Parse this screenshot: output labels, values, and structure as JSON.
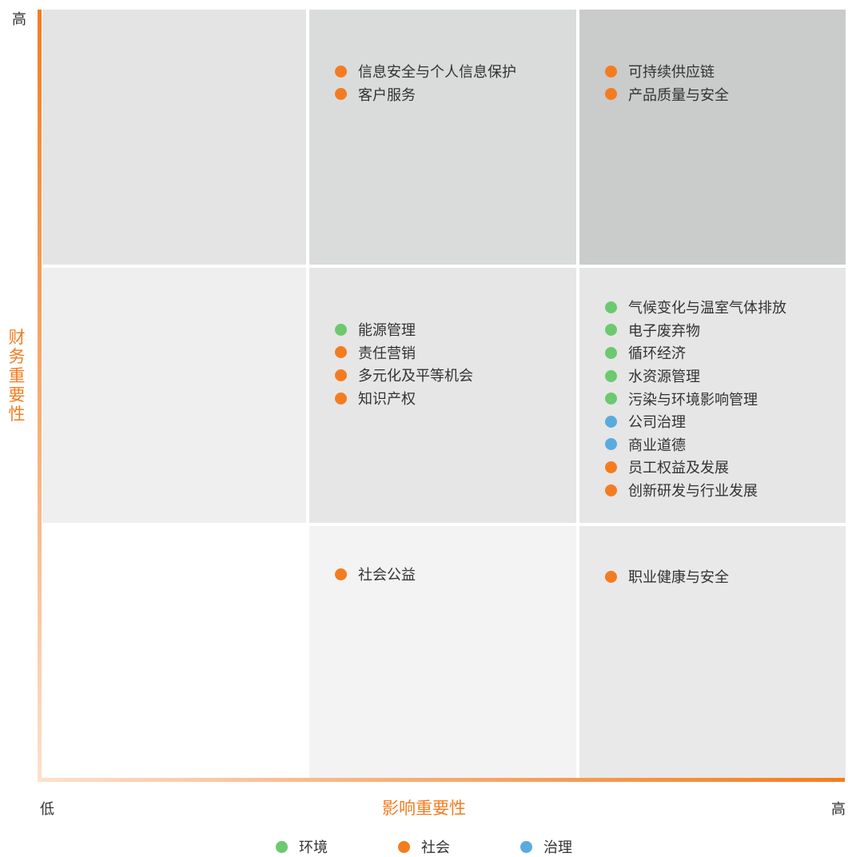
{
  "colors": {
    "environment": "#6cc970",
    "social": "#f47c20",
    "governance": "#5aabdd"
  },
  "axes": {
    "y_title": "财务重要性",
    "y_high": "高",
    "x_title": "影响重要性",
    "x_low": "低",
    "x_high": "高"
  },
  "legend": [
    {
      "label": "环境",
      "category": "environment"
    },
    {
      "label": "社会",
      "category": "social"
    },
    {
      "label": "治理",
      "category": "governance"
    }
  ],
  "matrix": {
    "r1c1": [],
    "r1c2": [
      {
        "label": "信息安全与个人信息保护",
        "category": "social"
      },
      {
        "label": "客户服务",
        "category": "social"
      }
    ],
    "r1c3": [
      {
        "label": "可持续供应链",
        "category": "social"
      },
      {
        "label": "产品质量与安全",
        "category": "social"
      }
    ],
    "r2c1": [],
    "r2c2": [
      {
        "label": "能源管理",
        "category": "environment"
      },
      {
        "label": "责任营销",
        "category": "social"
      },
      {
        "label": "多元化及平等机会",
        "category": "social"
      },
      {
        "label": "知识产权",
        "category": "social"
      }
    ],
    "r2c3": [
      {
        "label": "气候变化与温室气体排放",
        "category": "environment"
      },
      {
        "label": "电子废弃物",
        "category": "environment"
      },
      {
        "label": "循环经济",
        "category": "environment"
      },
      {
        "label": "水资源管理",
        "category": "environment"
      },
      {
        "label": "污染与环境影响管理",
        "category": "environment"
      },
      {
        "label": "公司治理",
        "category": "governance"
      },
      {
        "label": "商业道德",
        "category": "governance"
      },
      {
        "label": "员工权益及发展",
        "category": "social"
      },
      {
        "label": "创新研发与行业发展",
        "category": "social"
      }
    ],
    "r3c1": [],
    "r3c2": [
      {
        "label": "社会公益",
        "category": "social"
      }
    ],
    "r3c3": [
      {
        "label": "职业健康与安全",
        "category": "social"
      }
    ]
  }
}
